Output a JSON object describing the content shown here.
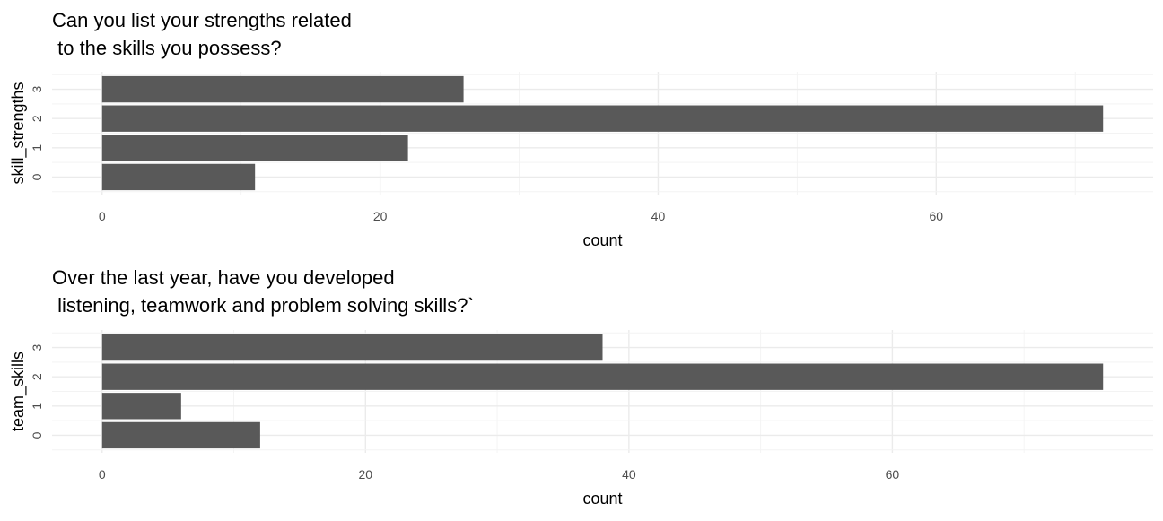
{
  "chart_data": [
    {
      "type": "bar",
      "orientation": "horizontal",
      "title_lines": [
        "Can you list your strengths related",
        " to the skills you possess?"
      ],
      "xlabel": "count",
      "ylabel": "skill_strengths",
      "categories": [
        "0",
        "1",
        "2",
        "3"
      ],
      "values": [
        11,
        22,
        72,
        26
      ],
      "xlim": [
        -3.6,
        75.6
      ],
      "xticks": [
        0,
        20,
        40,
        60
      ],
      "xtick_labels": [
        "0",
        "20",
        "40",
        "60"
      ],
      "grid": true,
      "bar_color": "#595959"
    },
    {
      "type": "bar",
      "orientation": "horizontal",
      "title_lines": [
        "Over the last year, have you developed",
        " listening, teamwork and problem solving skills?`"
      ],
      "xlabel": "count",
      "ylabel": "team_skills",
      "categories": [
        "0",
        "1",
        "2",
        "3"
      ],
      "values": [
        12,
        6,
        76,
        38
      ],
      "xlim": [
        -3.8,
        79.8
      ],
      "xticks": [
        0,
        20,
        40,
        60
      ],
      "xtick_labels": [
        "0",
        "20",
        "40",
        "60"
      ],
      "grid": true,
      "bar_color": "#595959"
    }
  ]
}
